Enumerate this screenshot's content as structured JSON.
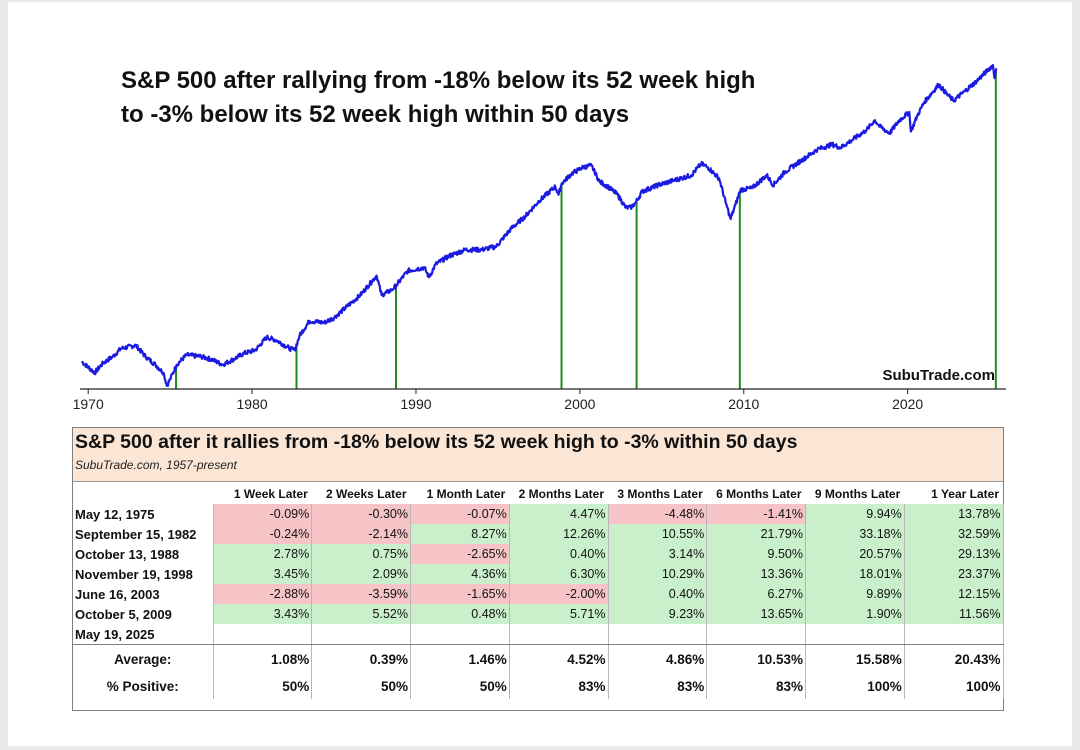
{
  "chart_data": [
    {
      "type": "line",
      "title_line1": "S&P 500 after rallying from -18% below its 52 week high",
      "title_line2": "to -3% below its 52 week high within 50 days",
      "watermark": "SubuTrade.com",
      "xlabel": "",
      "ylabel": "",
      "x_ticks": [
        "1970",
        "1980",
        "1990",
        "2000",
        "2010",
        "2020"
      ],
      "xlim": [
        1969.5,
        2026
      ],
      "ylim": [
        1.8,
        3.85
      ],
      "y_scale": "log10 (S&P 500 index level)",
      "grid": false,
      "series_color": "#1a1ae0",
      "signal_line_color": "#1f8a1f",
      "series": [
        {
          "x": [
            1969.6,
            1970.4,
            1970.9,
            1971.5,
            1972.0,
            1972.9,
            1973.5,
            1974.1,
            1974.6,
            1974.8,
            1975.0,
            1975.4,
            1976.0,
            1976.9,
            1977.6,
            1978.2,
            1978.8,
            1979.5,
            1980.2,
            1980.9,
            1981.5,
            1982.3,
            1982.6,
            1982.9,
            1983.5,
            1984.4,
            1985.0,
            1985.8,
            1986.6,
            1987.6,
            1987.9,
            1988.5,
            1988.8,
            1989.5,
            1990.5,
            1990.8,
            1991.2,
            1992.0,
            1993.0,
            1994.0,
            1994.9,
            1995.8,
            1996.6,
            1997.5,
            1998.5,
            1998.7,
            1998.9,
            1999.5,
            2000.2,
            2000.7,
            2001.2,
            2001.7,
            2002.3,
            2002.8,
            2003.1,
            2003.4,
            2003.8,
            2004.8,
            2005.8,
            2006.8,
            2007.4,
            2007.8,
            2008.5,
            2008.9,
            2009.2,
            2009.5,
            2009.8,
            2010.5,
            2011.4,
            2011.8,
            2012.5,
            2013.5,
            2014.5,
            2015.4,
            2015.9,
            2016.5,
            2017.5,
            2018.0,
            2018.3,
            2018.9,
            2019.5,
            2020.1,
            2020.2,
            2020.6,
            2021.0,
            2021.9,
            2022.4,
            2022.8,
            2023.5,
            2024.2,
            2024.9,
            2025.2,
            2025.3,
            2025.4
          ],
          "y": [
            1.97,
            1.9,
            1.96,
            2.0,
            2.05,
            2.07,
            2.0,
            1.95,
            1.9,
            1.82,
            1.86,
            1.95,
            2.01,
            2.0,
            1.98,
            1.95,
            1.98,
            2.02,
            2.04,
            2.12,
            2.1,
            2.05,
            2.04,
            2.13,
            2.22,
            2.21,
            2.24,
            2.31,
            2.38,
            2.5,
            2.38,
            2.41,
            2.44,
            2.53,
            2.55,
            2.49,
            2.57,
            2.62,
            2.66,
            2.66,
            2.68,
            2.79,
            2.86,
            2.96,
            3.05,
            3.0,
            3.07,
            3.13,
            3.17,
            3.18,
            3.08,
            3.05,
            3.0,
            2.92,
            2.92,
            2.95,
            3.02,
            3.06,
            3.09,
            3.12,
            3.19,
            3.17,
            3.1,
            2.95,
            2.85,
            2.94,
            3.03,
            3.04,
            3.12,
            3.06,
            3.14,
            3.21,
            3.28,
            3.31,
            3.29,
            3.33,
            3.4,
            3.46,
            3.42,
            3.38,
            3.46,
            3.51,
            3.39,
            3.49,
            3.57,
            3.68,
            3.62,
            3.58,
            3.64,
            3.7,
            3.77,
            3.8,
            3.72,
            3.78
          ]
        }
      ],
      "signal_lines_x": [
        1975.36,
        1982.71,
        1988.78,
        1998.88,
        2003.46,
        2009.76,
        2025.38
      ]
    },
    {
      "type": "table",
      "title": "S&P 500 after it rallies from -18% below its 52 week high to -3% within 50 days",
      "subtitle": "SubuTrade.com, 1957-present",
      "columns": [
        "1 Week Later",
        "2 Weeks Later",
        "1 Month Later",
        "2 Months Later",
        "3 Months Later",
        "6 Months Later",
        "9 Months Later",
        "1 Year Later"
      ],
      "rows": [
        {
          "date": "May 12, 1975",
          "values": [
            "-0.09%",
            "-0.30%",
            "-0.07%",
            "4.47%",
            "-4.48%",
            "-1.41%",
            "9.94%",
            "13.78%"
          ]
        },
        {
          "date": "September 15, 1982",
          "values": [
            "-0.24%",
            "-2.14%",
            "8.27%",
            "12.26%",
            "10.55%",
            "21.79%",
            "33.18%",
            "32.59%"
          ]
        },
        {
          "date": "October 13, 1988",
          "values": [
            "2.78%",
            "0.75%",
            "-2.65%",
            "0.40%",
            "3.14%",
            "9.50%",
            "20.57%",
            "29.13%"
          ]
        },
        {
          "date": "November 19, 1998",
          "values": [
            "3.45%",
            "2.09%",
            "4.36%",
            "6.30%",
            "10.29%",
            "13.36%",
            "18.01%",
            "23.37%"
          ]
        },
        {
          "date": "June 16, 2003",
          "values": [
            "-2.88%",
            "-3.59%",
            "-1.65%",
            "-2.00%",
            "0.40%",
            "6.27%",
            "9.89%",
            "12.15%"
          ]
        },
        {
          "date": "October 5, 2009",
          "values": [
            "3.43%",
            "5.52%",
            "0.48%",
            "5.71%",
            "9.23%",
            "13.65%",
            "1.90%",
            "11.56%"
          ]
        },
        {
          "date": "May 19, 2025",
          "values": [
            "",
            "",
            "",
            "",
            "",
            "",
            "",
            ""
          ]
        }
      ],
      "summary": [
        {
          "label": "Average:",
          "values": [
            "1.08%",
            "0.39%",
            "1.46%",
            "4.52%",
            "4.86%",
            "10.53%",
            "15.58%",
            "20.43%"
          ]
        },
        {
          "label": "% Positive:",
          "values": [
            "50%",
            "50%",
            "50%",
            "83%",
            "83%",
            "83%",
            "100%",
            "100%"
          ]
        }
      ],
      "positive_color": "#c9f0cb",
      "negative_color": "#f6c4c6",
      "header_color": "#fbe6d6"
    }
  ]
}
